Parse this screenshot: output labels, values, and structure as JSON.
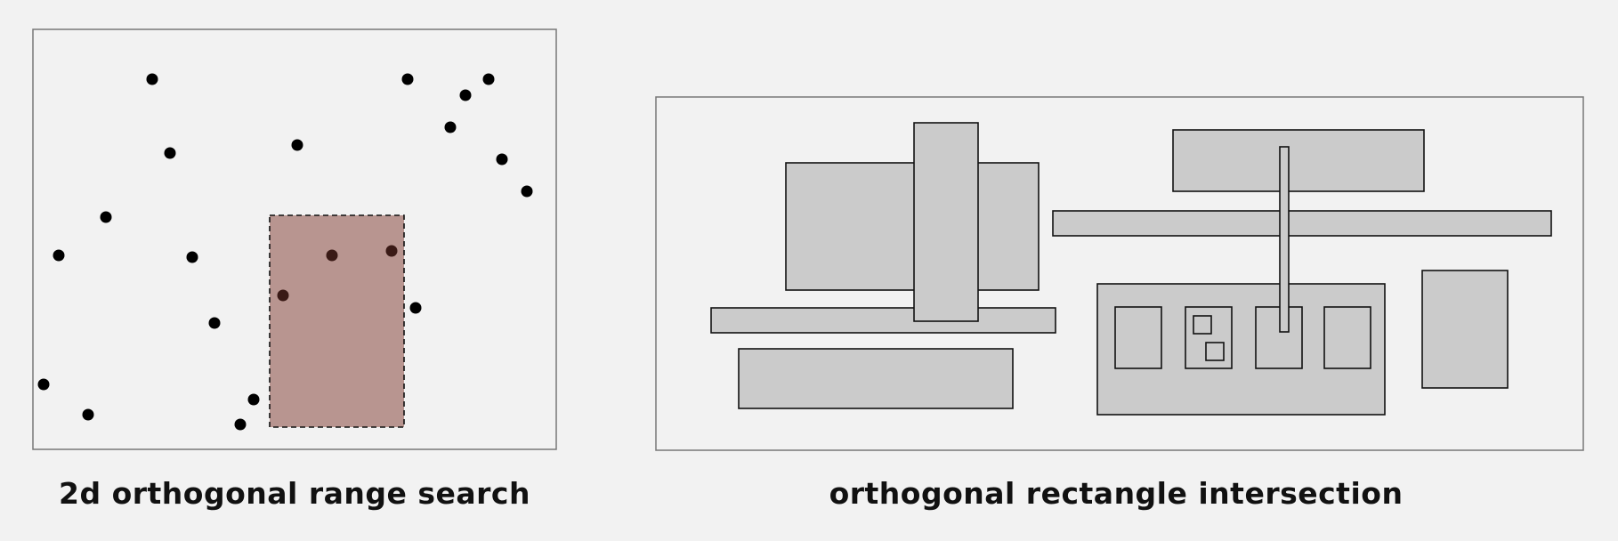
{
  "colors": {
    "background": "#f2f2f2",
    "frame_stroke": "#777777",
    "point_fill": "#000000",
    "point_inside_fill": "#3a1a16",
    "query_fill": "#b89590",
    "query_stroke": "#111111",
    "rect_fill": "#cbcbcb",
    "rect_stroke": "#111111"
  },
  "left_panel": {
    "caption": "2d orthogonal range search"
  },
  "right_panel": {
    "caption": "orthogonal rectangle intersection"
  }
}
